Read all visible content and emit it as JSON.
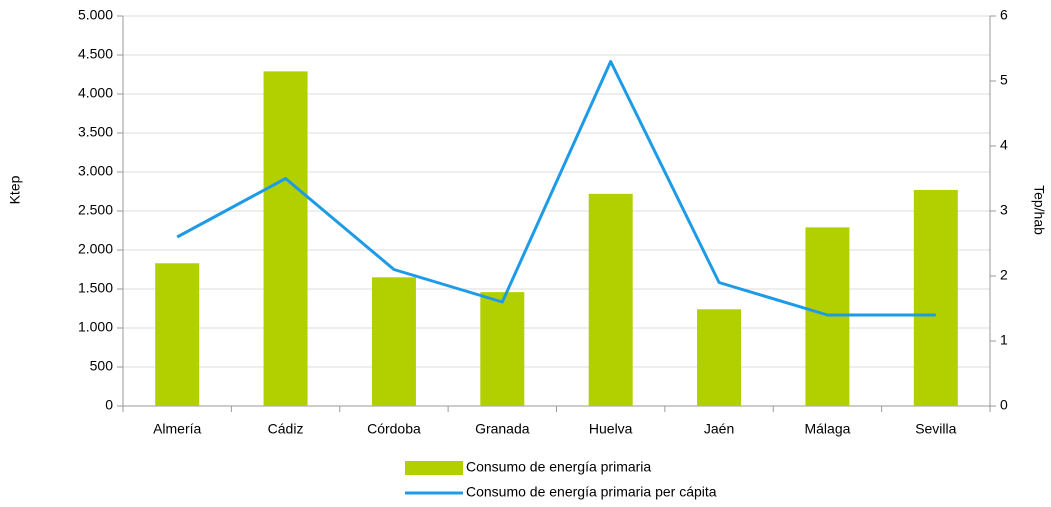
{
  "chart_data": {
    "type": "bar-line",
    "y_label": "Ktep",
    "y2_label": "Tep/hab",
    "categories": [
      "Almería",
      "Cádiz",
      "Córdoba",
      "Granada",
      "Huelva",
      "Jaén",
      "Málaga",
      "Sevilla"
    ],
    "series": [
      {
        "name": "Consumo de energía primaria",
        "type": "bar",
        "color": "#b2cf00",
        "values": [
          1830,
          4290,
          1650,
          1460,
          2720,
          1240,
          2290,
          2770
        ]
      },
      {
        "name": "Consumo de energía primaria per cápita",
        "type": "line",
        "axis": "y2",
        "color": "#1e9be6",
        "values": [
          2.6,
          3.5,
          2.1,
          1.6,
          5.3,
          1.9,
          1.4,
          1.4
        ]
      }
    ],
    "ylim": [
      0,
      5000
    ],
    "yticks": [
      0,
      500,
      {
        "value": 1000,
        "label": "1.000"
      },
      {
        "value": 1500,
        "label": "1.500"
      },
      {
        "value": 2000,
        "label": "2.000"
      },
      {
        "value": 2500,
        "label": "2.500"
      },
      {
        "value": 3000,
        "label": "3.000"
      },
      {
        "value": 3500,
        "label": "3.500"
      },
      {
        "value": 4000,
        "label": "4.000"
      },
      {
        "value": 4500,
        "label": "4.500"
      },
      {
        "value": 5000,
        "label": "5.000"
      }
    ],
    "y2lim": [
      0,
      6
    ],
    "y2ticks": [
      0,
      1,
      2,
      3,
      4,
      5,
      6
    ],
    "grid": true,
    "legend": "bottom"
  }
}
